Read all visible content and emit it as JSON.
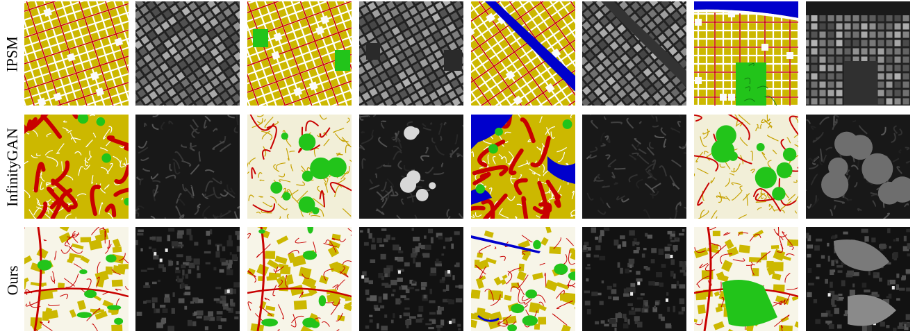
{
  "figure": {
    "rows": [
      {
        "label": "IPSM",
        "style": "grid",
        "tiles": [
          {
            "kind": "map",
            "variant": "grid",
            "rotation": -18,
            "features": [
              "plazas"
            ]
          },
          {
            "kind": "satellite",
            "variant": "grid",
            "rotation": -35,
            "features": []
          },
          {
            "kind": "map",
            "variant": "grid",
            "rotation": -20,
            "features": [
              "green-parks"
            ]
          },
          {
            "kind": "satellite",
            "variant": "grid",
            "rotation": -30,
            "features": [
              "dark-lots"
            ]
          },
          {
            "kind": "map",
            "variant": "grid",
            "rotation": -35,
            "features": [
              "river"
            ]
          },
          {
            "kind": "satellite",
            "variant": "grid",
            "rotation": -40,
            "features": [
              "river"
            ]
          },
          {
            "kind": "map",
            "variant": "grid",
            "rotation": 0,
            "features": [
              "coast",
              "central-park"
            ]
          },
          {
            "kind": "satellite",
            "variant": "grid",
            "rotation": 0,
            "features": [
              "coast",
              "central-park"
            ]
          }
        ]
      },
      {
        "label": "InfinityGAN",
        "style": "swirl",
        "tiles": [
          {
            "kind": "map",
            "variant": "swirl",
            "rotation": 0,
            "features": [
              "heavy-roads"
            ]
          },
          {
            "kind": "satellite",
            "variant": "swirl",
            "rotation": 0,
            "features": []
          },
          {
            "kind": "map",
            "variant": "swirl",
            "rotation": 0,
            "features": [
              "green-blobs",
              "white-areas"
            ]
          },
          {
            "kind": "satellite",
            "variant": "swirl",
            "rotation": 0,
            "features": [
              "bright-blobs"
            ]
          },
          {
            "kind": "map",
            "variant": "swirl",
            "rotation": 0,
            "features": [
              "water",
              "heavy-roads"
            ]
          },
          {
            "kind": "satellite",
            "variant": "swirl",
            "rotation": 0,
            "features": []
          },
          {
            "kind": "map",
            "variant": "swirl",
            "rotation": 0,
            "features": [
              "green-blobs",
              "pale"
            ]
          },
          {
            "kind": "satellite",
            "variant": "swirl",
            "rotation": 0,
            "features": [
              "gray-blobs"
            ]
          }
        ]
      },
      {
        "label": "Ours",
        "style": "organic",
        "tiles": [
          {
            "kind": "map",
            "variant": "organic",
            "rotation": 0,
            "features": [
              "green-patches",
              "arterial"
            ]
          },
          {
            "kind": "satellite",
            "variant": "organic",
            "rotation": 0,
            "features": []
          },
          {
            "kind": "map",
            "variant": "organic",
            "rotation": 0,
            "features": [
              "green-patches",
              "arterial"
            ]
          },
          {
            "kind": "satellite",
            "variant": "organic",
            "rotation": 0,
            "features": []
          },
          {
            "kind": "map",
            "variant": "organic",
            "rotation": 0,
            "features": [
              "river",
              "green-patches"
            ]
          },
          {
            "kind": "satellite",
            "variant": "organic",
            "rotation": 0,
            "features": []
          },
          {
            "kind": "map",
            "variant": "organic",
            "rotation": 0,
            "features": [
              "central-park",
              "arterial"
            ]
          },
          {
            "kind": "satellite",
            "variant": "organic",
            "rotation": 0,
            "features": [
              "gray-blobs"
            ]
          }
        ]
      }
    ],
    "colors": {
      "block_yellow": "#ccb800",
      "road_red": "#c80000",
      "road_white": "#ffffff",
      "green": "#22c41a",
      "water_blue": "#0000cc",
      "sat_dark": "#1a1a1a",
      "sat_mid": "#555555",
      "sat_light": "#9a9a9a"
    }
  }
}
